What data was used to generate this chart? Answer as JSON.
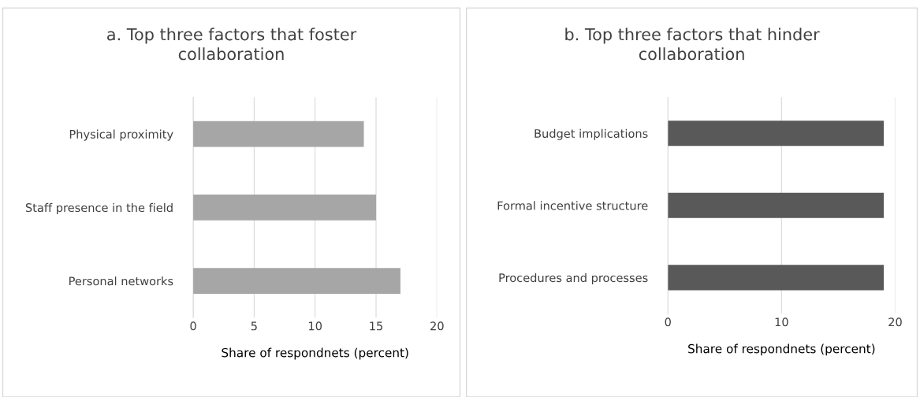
{
  "chart_data": [
    {
      "type": "bar",
      "orientation": "horizontal",
      "title": "a. Top three factors that foster\ncollaboration",
      "xlabel": "Share of respondnets (percent)",
      "categories": [
        "Physical proximity",
        "Staff presence in the field",
        "Personal networks"
      ],
      "values": [
        14,
        15,
        17
      ],
      "color": "#a6a6a6",
      "xlim": [
        0,
        20
      ],
      "xticks": [
        0,
        5,
        10,
        15,
        20
      ],
      "grid": "x"
    },
    {
      "type": "bar",
      "orientation": "horizontal",
      "title": "b. Top three factors that hinder\ncollaboration",
      "xlabel": "Share of respondnets (percent)",
      "categories": [
        "Budget implications",
        "Formal incentive structure",
        "Procedures and processes"
      ],
      "values": [
        19,
        19,
        19
      ],
      "color": "#595959",
      "xlim": [
        0,
        20
      ],
      "xticks": [
        0,
        10,
        20
      ],
      "grid": "x"
    }
  ]
}
